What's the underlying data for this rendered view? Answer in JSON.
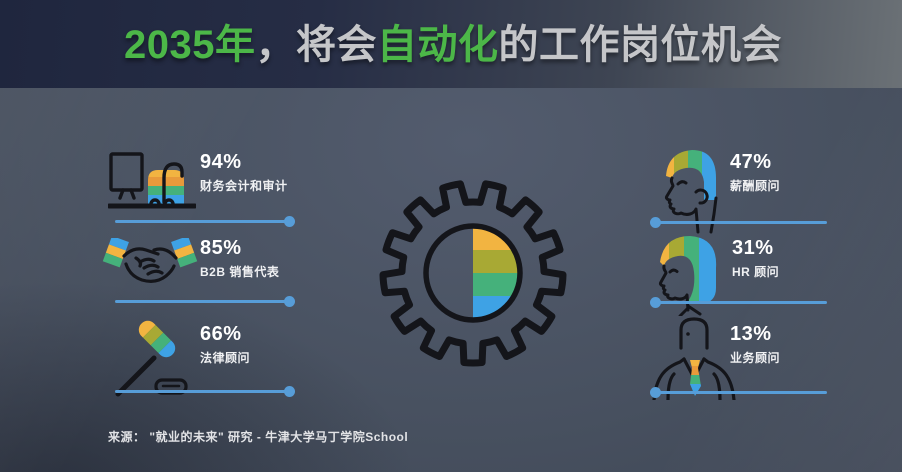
{
  "title": {
    "full": "2035年，将会自动化的工作岗位机会",
    "segments": [
      {
        "text": "2035年",
        "color": "#4CB748"
      },
      {
        "text": "，将会",
        "color": "#C5C6C9"
      },
      {
        "text": "自动化",
        "color": "#4CB748"
      },
      {
        "text": "的工作岗位机会",
        "color": "#C5C6C9"
      }
    ]
  },
  "stats": {
    "left": [
      {
        "value": "94%",
        "label": "财务会计和审计",
        "icon": "accountant-at-computer-icon"
      },
      {
        "value": "85%",
        "label": "B2B 销售代表",
        "icon": "handshake-icon"
      },
      {
        "value": "66%",
        "label": "法律顾问",
        "icon": "gavel-icon"
      }
    ],
    "right": [
      {
        "value": "47%",
        "label": "薪酬顾问",
        "icon": "male-head-profile-icon"
      },
      {
        "value": "31%",
        "label": "HR 顾问",
        "icon": "female-head-profile-icon"
      },
      {
        "value": "13%",
        "label": "业务顾问",
        "icon": "business-consultant-icon"
      }
    ]
  },
  "source": {
    "text": "来源： \"就业的未来\" 研究 - 牛津大学马丁学院School"
  },
  "colors": {
    "accent_green": "#4CB748",
    "title_gray": "#C5C6C9",
    "line_blue": "#579DD8",
    "stripe_amber": "#F2B441",
    "stripe_olive": "#A8A934",
    "stripe_orange": "#E89A3B",
    "stripe_green": "#45B17B",
    "stripe_blue": "#3EA2E5",
    "outline_black": "#14151A",
    "text_white": "#FFFFFF"
  },
  "chart_data": [
    {
      "type": "table",
      "title": "2035年，将会自动化的工作岗位机会",
      "categories": [
        "财务会计和审计",
        "B2B 销售代表",
        "法律顾问",
        "薪酬顾问",
        "HR 顾问",
        "业务顾问"
      ],
      "values": [
        94,
        85,
        66,
        47,
        31,
        13
      ],
      "unit": "%",
      "layout": "three stats left column, three stats right column, gear pie centered"
    },
    {
      "type": "pie",
      "title": "gear half-pie decoration",
      "categories": [
        "amber band",
        "olive band",
        "green band",
        "blue band",
        "empty left half"
      ],
      "values": [
        12.5,
        12.5,
        12.5,
        12.5,
        50
      ],
      "colors": [
        "#F2B441",
        "#A8A934",
        "#45B17B",
        "#3EA2E5",
        "transparent"
      ]
    }
  ]
}
